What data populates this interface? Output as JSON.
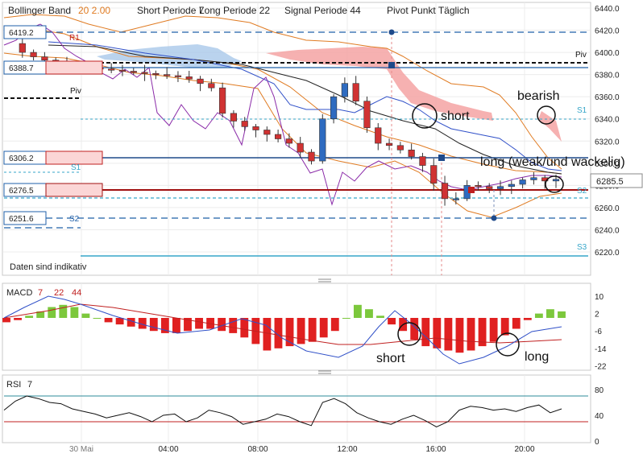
{
  "header": {
    "bollinger_label": "Bollinger Band",
    "bollinger_params": "20 2.00",
    "short_periode": "Short Periode  7",
    "long_periode": "Long Periode  22",
    "signal_periode": "Signal Periode  44",
    "pivot": "Pivot Punkt  Täglich"
  },
  "main_panel": {
    "disclaimer": "Daten sind indikativ",
    "price_axis": [
      6440.0,
      6420.0,
      6400.0,
      6380.0,
      6360.0,
      6340.0,
      6320.0,
      6300.0,
      6280.0,
      6260.0,
      6240.0,
      6220.0
    ],
    "price_axis_labels": [
      "6440.0",
      "6420.0",
      "6400.0",
      "6380.0",
      "6360.0",
      "6340.0",
      "6320.0",
      "6300.0",
      "6280.0",
      "6260.0",
      "6240.0",
      "6220.0"
    ],
    "current_price": "6285.5",
    "left_levels": [
      {
        "label": "6419.2",
        "value": 6419.2
      },
      {
        "label": "6388.7",
        "value": 6388.7
      },
      {
        "label": "6306.2",
        "value": 6306.2
      },
      {
        "label": "6276.5",
        "value": 6276.5
      },
      {
        "label": "6251.6",
        "value": 6251.6
      }
    ],
    "pivot_labels_left": {
      "r1": "R1",
      "piv": "Piv",
      "s1": "S1",
      "s2": "S2"
    },
    "pivot_labels_right": {
      "piv": "Piv",
      "s1": "S1",
      "s2": "S2",
      "s3": "S3"
    },
    "annotations": {
      "short": "short",
      "bearish": "bearish",
      "long": "long (weak/und wackelig)"
    },
    "colors": {
      "up": "#2e6bc0",
      "down": "#d03232",
      "bollinger": "#e07b22",
      "pivot_blue": "#1f5fa8",
      "pivot_red": "#a01010",
      "cloud_red": "#f4a3a3",
      "cloud_blue": "#a9c8ea",
      "macd_pos": "#7cc83c",
      "macd_neg": "#e02020"
    }
  },
  "macd_panel": {
    "title": "MACD",
    "params": [
      "7",
      "22",
      "44"
    ],
    "axis_labels": [
      "10",
      "2",
      "-6",
      "-14",
      "-22"
    ],
    "annotations": {
      "short": "short",
      "long": "long"
    }
  },
  "rsi_panel": {
    "title": "RSI",
    "param": "7",
    "axis_labels": [
      "80",
      "40",
      "0"
    ]
  },
  "time_axis": {
    "labels": [
      "30 Mai",
      "04:00",
      "08:00",
      "12:00",
      "16:00",
      "20:00"
    ]
  },
  "chart_data": [
    {
      "type": "candlestick",
      "title": "Bollinger Band 20 2.00",
      "ylim": [
        6210,
        6445
      ],
      "x": [
        "00:00",
        "04:00",
        "08:00",
        "12:00",
        "16:00",
        "20:00"
      ],
      "close_path": [
        6408,
        6400,
        6396,
        6393,
        6391,
        6389,
        6387,
        6386,
        6385,
        6384,
        6383,
        6382,
        6381,
        6380,
        6379,
        6378,
        6376,
        6372,
        6368,
        6345,
        6338,
        6333,
        6330,
        6326,
        6322,
        6318,
        6310,
        6302,
        6340,
        6360,
        6372,
        6356,
        6332,
        6318,
        6316,
        6312,
        6306,
        6298,
        6282,
        6268,
        6268,
        6280,
        6279,
        6277,
        6279,
        6281,
        6285,
        6287,
        6284,
        6285.5
      ],
      "pivot_levels": {
        "R1": 6419.2,
        "Piv": 6388.7,
        "S1": 6341,
        "S2": 6276.5,
        "S3": 6219
      },
      "annotations": [
        "short",
        "bearish",
        "long (weak/und wackelig)"
      ]
    },
    {
      "type": "bar",
      "title": "MACD 7 22 44",
      "ylim": [
        -24,
        12
      ],
      "values": [
        -2,
        -1,
        1,
        3,
        5,
        6,
        5,
        2,
        0,
        -2,
        -3,
        -4,
        -5,
        -6,
        -7,
        -7,
        -6,
        -5,
        -5,
        -6,
        -7,
        -9,
        -12,
        -15,
        -14,
        -13,
        -12,
        -11,
        -9,
        -6,
        0,
        6,
        4,
        1,
        -3,
        -6,
        -10,
        -13,
        -14,
        -15,
        -16,
        -15,
        -13,
        -11,
        -8,
        -5,
        -1,
        2,
        4,
        3
      ],
      "annotations": [
        "short",
        "long"
      ]
    },
    {
      "type": "line",
      "title": "RSI 7",
      "ylim": [
        0,
        100
      ],
      "levels": [
        70,
        30
      ],
      "values": [
        48,
        62,
        70,
        66,
        60,
        58,
        50,
        46,
        42,
        36,
        40,
        44,
        38,
        30,
        40,
        42,
        30,
        36,
        48,
        44,
        38,
        26,
        30,
        34,
        42,
        38,
        30,
        24,
        60,
        66,
        58,
        44,
        36,
        30,
        26,
        34,
        40,
        32,
        22,
        30,
        48,
        54,
        52,
        48,
        50,
        46,
        52,
        56,
        44,
        50
      ]
    }
  ]
}
